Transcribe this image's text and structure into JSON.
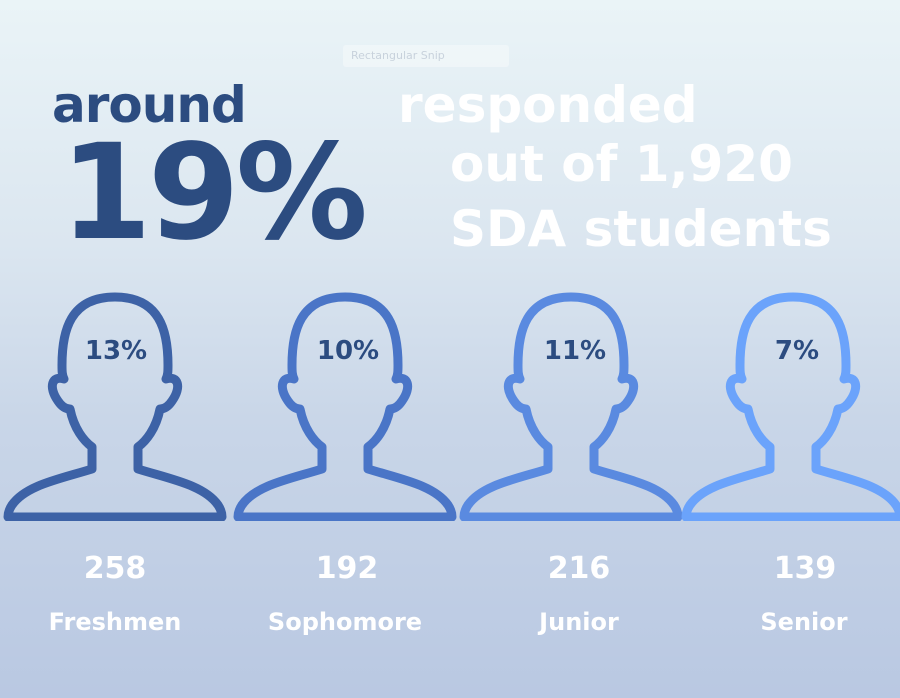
{
  "overlay_tag": "Rectangular Snip",
  "headline": {
    "prefix": "around",
    "percent": "19%",
    "line1": "responded",
    "line2": "out of 1,920",
    "line3": "SDA students"
  },
  "classes": [
    {
      "percent": "13%",
      "count": "258",
      "label": "Freshmen",
      "color": "#3d62a6"
    },
    {
      "percent": "10%",
      "count": "192",
      "label": "Sophomore",
      "color": "#4a75c7"
    },
    {
      "percent": "11%",
      "count": "216",
      "label": "Junior",
      "color": "#5a8ae0"
    },
    {
      "percent": "7%",
      "count": "139",
      "label": "Senior",
      "color": "#6ba3fb"
    }
  ],
  "colors": {
    "headline": "#2c4c80",
    "accent_text": "#ffffff"
  }
}
